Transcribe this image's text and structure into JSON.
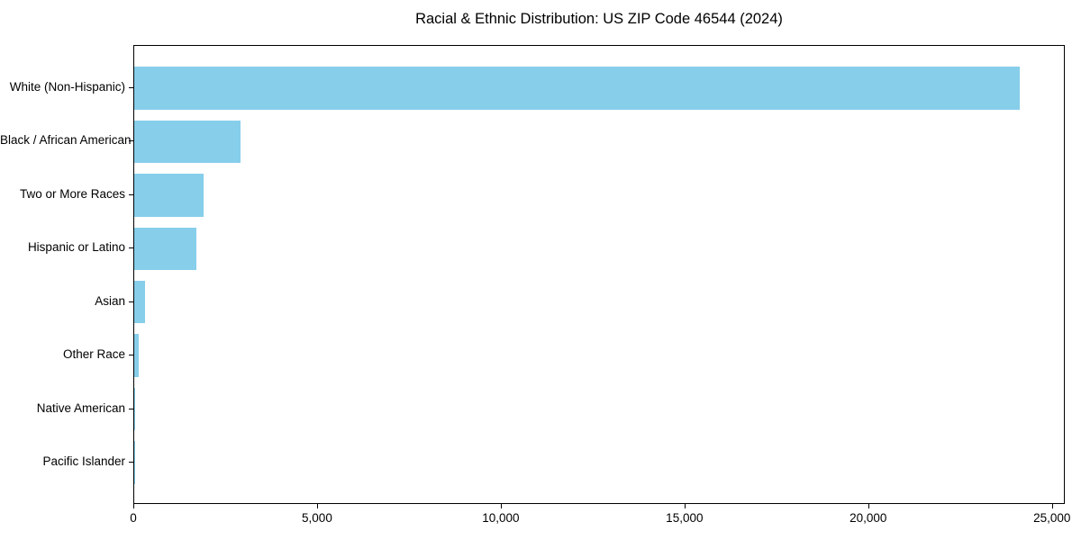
{
  "title": "Racial & Ethnic Distribution: US ZIP Code 46544 (2024)",
  "chart_data": {
    "type": "bar",
    "orientation": "horizontal",
    "title": "Racial & Ethnic Distribution: US ZIP Code 46544 (2024)",
    "xlabel": "",
    "ylabel": "",
    "categories": [
      "White (Non-Hispanic)",
      "Black / African American",
      "Two or More Races",
      "Hispanic or Latino",
      "Asian",
      "Other Race",
      "Native American",
      "Pacific Islander"
    ],
    "values": [
      24100,
      2900,
      1900,
      1680,
      300,
      130,
      20,
      10
    ],
    "xlim": [
      0,
      25350
    ],
    "x_ticks": [
      0,
      5000,
      10000,
      15000,
      20000,
      25000
    ],
    "x_tick_labels": [
      "0",
      "5,000",
      "10,000",
      "15,000",
      "20,000",
      "25,000"
    ],
    "bar_color": "#87CEEB",
    "background_color": "#FFFFFF",
    "axis_color": "#000000",
    "grid": false,
    "legend": null
  }
}
